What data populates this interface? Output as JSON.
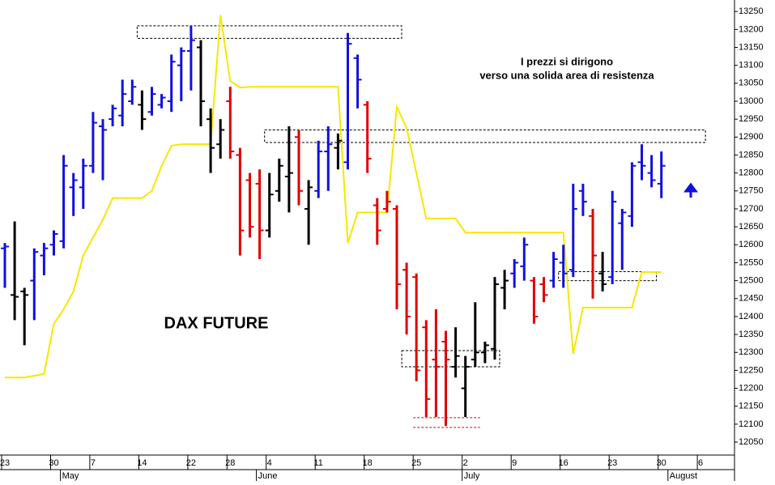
{
  "chart_data": {
    "type": "ohlc",
    "title": "DAX FUTURE",
    "annotations": [
      "I prezzi si dirigono",
      "verso una solida area di resistenza"
    ],
    "categories": [
      "23",
      null,
      null,
      null,
      null,
      "30",
      null,
      null,
      null,
      "7",
      null,
      null,
      null,
      null,
      "14",
      null,
      null,
      null,
      null,
      "22",
      null,
      null,
      null,
      "28",
      null,
      null,
      null,
      "4",
      null,
      null,
      null,
      null,
      "11",
      null,
      null,
      null,
      null,
      "18",
      null,
      null,
      null,
      null,
      "25",
      null,
      null,
      null,
      null,
      "2",
      null,
      null,
      null,
      null,
      "9",
      null,
      null,
      null,
      null,
      "16",
      null,
      null,
      null,
      null,
      "23",
      null,
      null,
      null,
      null,
      "30",
      null,
      null,
      null,
      "6"
    ],
    "months": [
      null,
      null,
      null,
      null,
      null,
      null,
      "May",
      null,
      null,
      null,
      null,
      null,
      null,
      null,
      null,
      null,
      null,
      null,
      null,
      null,
      null,
      null,
      null,
      null,
      null,
      null,
      "June",
      null,
      null,
      null,
      null,
      null,
      null,
      null,
      null,
      null,
      null,
      null,
      null,
      null,
      null,
      null,
      null,
      null,
      null,
      null,
      null,
      "July",
      null,
      null,
      null,
      null,
      null,
      null,
      null,
      null,
      null,
      null,
      null,
      null,
      null,
      null,
      null,
      null,
      null,
      null,
      null,
      null,
      "August",
      null,
      null,
      null
    ],
    "open": [
      12590,
      12460,
      12470,
      12500,
      12570,
      12600,
      12610,
      12760,
      12760,
      12820,
      12930,
      12950,
      12960,
      13000,
      12990,
      12970,
      12990,
      13000,
      13100,
      13140,
      13150,
      12950,
      12880,
      13000,
      12850,
      12780,
      12770,
      12640,
      12750,
      12790,
      12900,
      12700,
      12750,
      12860,
      12870,
      12830,
      13120,
      12990,
      12710,
      12700,
      12700,
      12530,
      12510,
      12370,
      12280,
      12330,
      12260,
      12200,
      12280,
      12300,
      12310,
      12480,
      12520,
      12540,
      12500,
      12490,
      12500,
      12550,
      12530,
      12750,
      12680,
      12520,
      12510,
      12660,
      12680,
      12830,
      12800,
      12770,
      null,
      null,
      null,
      null
    ],
    "high": [
      12605,
      12665,
      12480,
      12590,
      12605,
      12640,
      12850,
      12800,
      12840,
      12970,
      12950,
      12990,
      13060,
      13060,
      13030,
      13040,
      13020,
      13130,
      13150,
      13210,
      13170,
      12980,
      12950,
      13040,
      12870,
      12800,
      12810,
      12800,
      12840,
      12930,
      12920,
      12780,
      12890,
      12930,
      12910,
      13190,
      13130,
      13000,
      12730,
      12750,
      12710,
      12550,
      12520,
      12390,
      12420,
      12360,
      12370,
      12290,
      12440,
      12330,
      12510,
      12530,
      12560,
      12620,
      12510,
      12510,
      12580,
      12600,
      12770,
      12770,
      12700,
      12580,
      12750,
      12700,
      12830,
      12880,
      12850,
      12860,
      null,
      null,
      null,
      null
    ],
    "low": [
      12480,
      12390,
      12320,
      12390,
      12515,
      12570,
      12590,
      12680,
      12700,
      12800,
      12780,
      12930,
      12930,
      12990,
      12920,
      12960,
      12980,
      12970,
      13000,
      13030,
      12930,
      12800,
      12840,
      12840,
      12570,
      12620,
      12560,
      12620,
      12720,
      12690,
      12710,
      12600,
      12730,
      12750,
      12810,
      12810,
      12980,
      12800,
      12600,
      12690,
      12420,
      12350,
      12220,
      12120,
      12120,
      12095,
      12230,
      12120,
      12260,
      12270,
      12280,
      12420,
      12480,
      12500,
      12380,
      12440,
      12480,
      12480,
      12510,
      12680,
      12450,
      12470,
      12490,
      12530,
      12650,
      12780,
      12760,
      12730,
      null,
      null,
      null,
      null
    ],
    "close": [
      12595,
      12455,
      12460,
      12580,
      12590,
      12630,
      12820,
      12780,
      12820,
      12940,
      12920,
      12980,
      13020,
      13040,
      12950,
      13020,
      13010,
      13110,
      13140,
      13170,
      13000,
      12870,
      12920,
      12860,
      12640,
      12650,
      12640,
      12740,
      12820,
      12800,
      12750,
      12760,
      12860,
      12880,
      12890,
      13160,
      13060,
      12840,
      12640,
      12720,
      12490,
      12400,
      12250,
      12170,
      12260,
      12280,
      12290,
      12260,
      12300,
      12320,
      12490,
      12500,
      12550,
      12600,
      12400,
      12460,
      12560,
      12520,
      12700,
      12720,
      12570,
      12490,
      12720,
      12690,
      12820,
      12820,
      12780,
      12820,
      null,
      null,
      null,
      null
    ],
    "bar_colors": [
      "#1010e0",
      "#000000",
      "#000000",
      "#1010e0",
      "#1010e0",
      "#1010e0",
      "#1010e0",
      "#1010e0",
      "#1010e0",
      "#1010e0",
      "#1010e0",
      "#1010e0",
      "#1010e0",
      "#1010e0",
      "#000000",
      "#1010e0",
      "#1010e0",
      "#1010e0",
      "#1010e0",
      "#1010e0",
      "#000000",
      "#000000",
      "#000000",
      "#e00000",
      "#e00000",
      "#e00000",
      "#e00000",
      "#000000",
      "#000000",
      "#000000",
      "#e00000",
      "#000000",
      "#1010e0",
      "#1010e0",
      "#000000",
      "#1010e0",
      "#1010e0",
      "#e00000",
      "#e00000",
      "#e00000",
      "#e00000",
      "#e00000",
      "#e00000",
      "#e00000",
      "#e00000",
      "#e00000",
      "#000000",
      "#000000",
      "#000000",
      "#000000",
      "#000000",
      "#000000",
      "#1010e0",
      "#1010e0",
      "#e00000",
      "#e00000",
      "#1010e0",
      "#1010e0",
      "#1010e0",
      "#1010e0",
      "#e00000",
      "#000000",
      "#1010e0",
      "#1010e0",
      "#1010e0",
      "#1010e0",
      "#1010e0",
      "#1010e0",
      "#1010e0",
      "#1010e0",
      "#1010e0",
      "#1010e0"
    ],
    "line": {
      "color": "#f5e800",
      "values": [
        12230,
        12230,
        12230,
        12235,
        12240,
        12380,
        12420,
        12470,
        12570,
        12620,
        12670,
        12730,
        12730,
        12730,
        12730,
        12750,
        12820,
        12876,
        12880,
        12880,
        12880,
        12880,
        13240,
        13056,
        13038,
        13040,
        13040,
        13040,
        13040,
        13040,
        13040,
        13040,
        13040,
        13040,
        13040,
        12605,
        12690,
        12690,
        12690,
        12690,
        12984,
        12925,
        12800,
        12673,
        12673,
        12673,
        12673,
        12634,
        12634,
        12634,
        12634,
        12634,
        12634,
        12634,
        12634,
        12634,
        12634,
        12634,
        12296,
        12425,
        12425,
        12425,
        12425,
        12425,
        12425,
        12524,
        12524,
        12524,
        null,
        null,
        null,
        null
      ]
    },
    "zones": [
      {
        "from": 14,
        "to": 40,
        "low": 13175,
        "high": 13210
      },
      {
        "from": 27,
        "to": 71,
        "low": 12885,
        "high": 12920
      },
      {
        "from": 41,
        "to": 50,
        "low": 12260,
        "high": 12305
      },
      {
        "from": 57,
        "to": 66,
        "low": 12500,
        "high": 12525
      }
    ],
    "support_lines": {
      "color": "#e00000",
      "from": 42,
      "to": 48,
      "values": [
        12118,
        12091
      ]
    },
    "ylim": [
      12014,
      13282
    ],
    "yticks": [
      12050,
      12100,
      12150,
      12200,
      12250,
      12300,
      12350,
      12400,
      12450,
      12500,
      12550,
      12600,
      12650,
      12700,
      12750,
      12800,
      12850,
      12900,
      12950,
      13000,
      13050,
      13100,
      13150,
      13200,
      13250
    ]
  }
}
